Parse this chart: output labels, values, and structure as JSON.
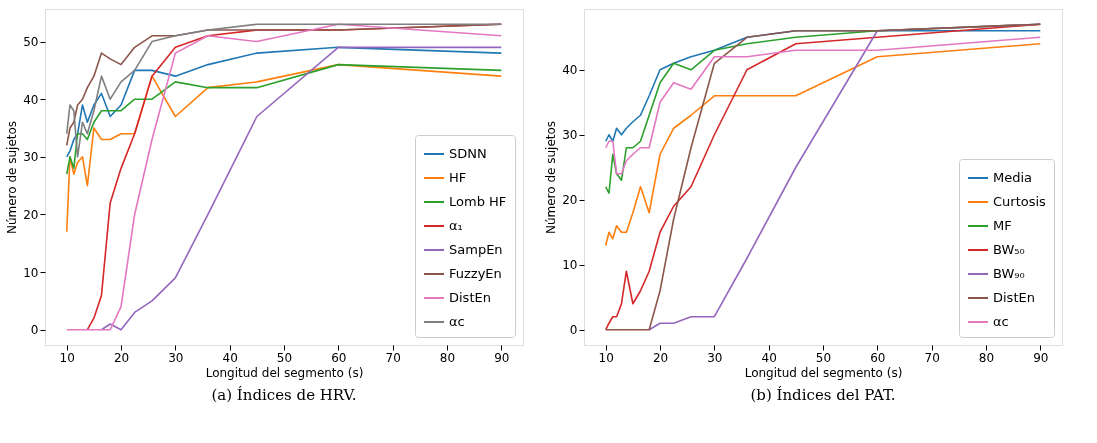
{
  "chart_data": [
    {
      "type": "line",
      "xlabel": "Longitud del segmento (s)",
      "ylabel": "Número de sujetos",
      "annotations": [
        "(a) Índices de HRV."
      ],
      "x": [
        10,
        10.6,
        11.3,
        12,
        12.9,
        13.8,
        15,
        16.4,
        18,
        20,
        22.5,
        25.7,
        30,
        36,
        45,
        60,
        90
      ],
      "xlim": [
        6,
        94
      ],
      "xticks": [
        10,
        20,
        30,
        40,
        50,
        60,
        70,
        80,
        90
      ],
      "ylim": [
        -2.65,
        55.65
      ],
      "yticks": [
        0,
        10,
        20,
        30,
        40,
        50
      ],
      "grid": false,
      "legend": "bottom right",
      "line_style": "solid",
      "marker": "none",
      "series": [
        {
          "name": "SDNN",
          "color": "#1f77b4",
          "values": [
            30,
            31,
            33,
            34,
            39,
            36,
            39,
            41,
            37,
            39,
            45,
            45,
            44,
            46,
            48,
            49,
            48
          ]
        },
        {
          "name": "HF",
          "color": "#ff7f0e",
          "values": [
            17,
            30,
            27,
            29,
            30,
            25,
            35,
            33,
            33,
            34,
            34,
            44,
            37,
            42,
            43,
            46,
            44
          ]
        },
        {
          "name": "Lomb HF",
          "color": "#2ca02c",
          "values": [
            27,
            30,
            28,
            34,
            34,
            33,
            36,
            38,
            38,
            38,
            40,
            40,
            43,
            42,
            42,
            46,
            45
          ]
        },
        {
          "name": "α₁",
          "color": "#d62728",
          "values": [
            null,
            null,
            null,
            null,
            null,
            0,
            2,
            6,
            22,
            28,
            34,
            44,
            49,
            51,
            52,
            52,
            53
          ]
        },
        {
          "name": "SampEn",
          "color": "#9467bd",
          "values": [
            null,
            null,
            null,
            null,
            null,
            null,
            null,
            0,
            1,
            0,
            3,
            5,
            9,
            20,
            37,
            49,
            49
          ]
        },
        {
          "name": "FuzzyEn",
          "color": "#8c564b",
          "values": [
            32,
            35,
            36,
            39,
            40,
            42,
            44,
            48,
            47,
            46,
            49,
            51,
            51,
            52,
            52,
            52,
            53
          ]
        },
        {
          "name": "DistEn",
          "color": "#e377c2",
          "values": [
            0,
            0,
            0,
            0,
            0,
            0,
            0,
            0,
            0,
            4,
            20,
            33,
            48,
            51,
            50,
            53,
            51
          ]
        },
        {
          "name": "αc",
          "color": "#7f7f7f",
          "values": [
            34,
            39,
            38,
            30,
            36,
            34,
            38,
            44,
            40,
            43,
            45,
            50,
            51,
            52,
            53,
            53,
            53
          ]
        }
      ]
    },
    {
      "type": "line",
      "xlabel": "Longitud del segmento (s)",
      "ylabel": "Número de sujetos",
      "annotations": [
        "(b) Índices del PAT."
      ],
      "x": [
        10,
        10.6,
        11.3,
        12,
        12.9,
        13.8,
        15,
        16.4,
        18,
        20,
        22.5,
        25.7,
        30,
        36,
        45,
        60,
        90
      ],
      "xlim": [
        6,
        94
      ],
      "xticks": [
        10,
        20,
        30,
        40,
        50,
        60,
        70,
        80,
        90
      ],
      "ylim": [
        -2.35,
        49.35
      ],
      "yticks": [
        0,
        10,
        20,
        30,
        40
      ],
      "grid": false,
      "legend": "bottom right",
      "line_style": "solid",
      "marker": "none",
      "series": [
        {
          "name": "Media",
          "color": "#1f77b4",
          "values": [
            29,
            30,
            29,
            31,
            30,
            31,
            32,
            33,
            36,
            40,
            41,
            42,
            43,
            45,
            46,
            46,
            46
          ]
        },
        {
          "name": "Curtosis",
          "color": "#ff7f0e",
          "values": [
            13,
            15,
            14,
            16,
            15,
            15,
            18,
            22,
            18,
            27,
            31,
            33,
            36,
            36,
            36,
            42,
            44
          ]
        },
        {
          "name": "MF",
          "color": "#2ca02c",
          "values": [
            22,
            21,
            27,
            24,
            23,
            28,
            28,
            29,
            33,
            38,
            41,
            40,
            43,
            44,
            45,
            46,
            47
          ]
        },
        {
          "name": "BW₅₀",
          "color": "#d62728",
          "values": [
            0,
            1,
            2,
            2,
            4,
            9,
            4,
            6,
            9,
            15,
            19,
            22,
            30,
            40,
            44,
            45,
            47
          ]
        },
        {
          "name": "BW₉₀",
          "color": "#9467bd",
          "values": [
            null,
            null,
            null,
            null,
            null,
            null,
            null,
            null,
            0,
            1,
            1,
            2,
            2,
            11,
            25,
            46,
            47
          ]
        },
        {
          "name": "DistEn",
          "color": "#8c564b",
          "values": [
            0,
            0,
            0,
            0,
            0,
            0,
            0,
            0,
            0,
            6,
            17,
            28,
            41,
            45,
            46,
            46,
            47
          ]
        },
        {
          "name": "αc",
          "color": "#e377c2",
          "values": [
            28,
            29,
            29,
            24,
            24,
            26,
            27,
            28,
            28,
            35,
            38,
            37,
            42,
            42,
            43,
            43,
            45
          ]
        }
      ]
    }
  ]
}
